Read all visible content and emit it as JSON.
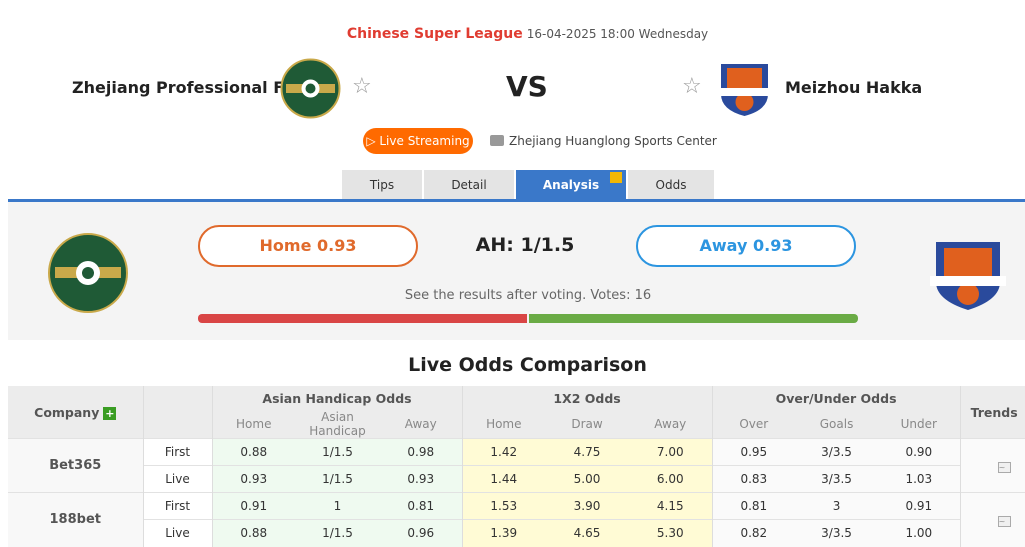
{
  "match": {
    "league": "Chinese Super League",
    "datetime": "16-04-2025 18:00 Wednesday",
    "home_team": "Zhejiang Professional FC",
    "away_team": "Meizhou Hakka",
    "vs": "VS",
    "live_label": "Live Streaming",
    "venue": "Zhejiang Huanglong Sports Center"
  },
  "tabs": [
    {
      "label": "Tips"
    },
    {
      "label": "Detail"
    },
    {
      "label": "Analysis",
      "active": true
    },
    {
      "label": "Odds"
    }
  ],
  "vote": {
    "home_label": "Home 0.93",
    "away_label": "Away 0.93",
    "ah_label": "AH: 1/1.5",
    "note": "See the results after voting. Votes: 16",
    "home_share": 0.5,
    "colors": {
      "home": "#e06a2c",
      "away": "#2c95e0",
      "bar_home": "#d94545",
      "bar_away": "#6aab45"
    }
  },
  "odds": {
    "title": "Live Odds Comparison",
    "headers": {
      "company": "Company",
      "ah": "Asian Handicap Odds",
      "x12": "1X2 Odds",
      "ou": "Over/Under Odds",
      "trends": "Trends",
      "sub": [
        "Home",
        "Asian Handicap",
        "Away",
        "Home",
        "Draw",
        "Away",
        "Over",
        "Goals",
        "Under"
      ]
    },
    "rows": [
      {
        "company": "Bet365",
        "lines": [
          {
            "type": "First",
            "v": [
              "0.88",
              "1/1.5",
              "0.98",
              "1.42",
              "4.75",
              "7.00",
              "0.95",
              "3/3.5",
              "0.90"
            ]
          },
          {
            "type": "Live",
            "v": [
              "0.93",
              "1/1.5",
              "0.93",
              "1.44",
              "5.00",
              "6.00",
              "0.83",
              "3/3.5",
              "1.03"
            ]
          }
        ]
      },
      {
        "company": "188bet",
        "lines": [
          {
            "type": "First",
            "v": [
              "0.91",
              "1",
              "0.81",
              "1.53",
              "3.90",
              "4.15",
              "0.81",
              "3",
              "0.91"
            ]
          },
          {
            "type": "Live",
            "v": [
              "0.88",
              "1/1.5",
              "0.96",
              "1.39",
              "4.65",
              "5.30",
              "0.82",
              "3/3.5",
              "1.00"
            ]
          }
        ]
      }
    ]
  }
}
